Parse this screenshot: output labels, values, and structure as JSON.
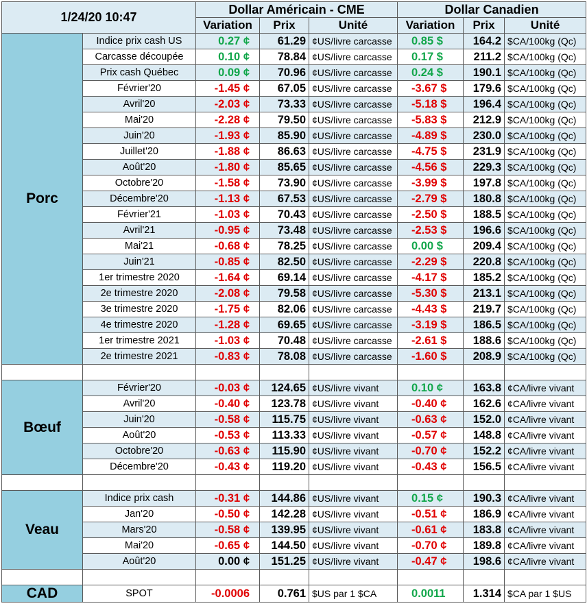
{
  "header": {
    "datetime": "1/24/20 10:47",
    "usd_group": "Dollar Américain - CME",
    "cad_group": "Dollar Canadien",
    "col_variation": "Variation",
    "col_prix": "Prix",
    "col_unite": "Unité"
  },
  "colors": {
    "negative": "#e00000",
    "positive": "#11a64a",
    "category_bg": "#95cfe0",
    "stripe_bg": "#dcebf3"
  },
  "sections": [
    {
      "name": "Porc",
      "rows": [
        {
          "label": "Indice prix cash US",
          "usd_var": "0.27 ¢",
          "usd_price": "61.29",
          "usd_unit": "¢US/livre carcasse",
          "cad_var": "0.85 $",
          "cad_price": "164.2",
          "cad_unit": "$CA/100kg (Qc)",
          "usd_sign": "pos",
          "cad_sign": "pos"
        },
        {
          "label": "Carcasse découpée",
          "usd_var": "0.10 ¢",
          "usd_price": "78.84",
          "usd_unit": "¢US/livre carcasse",
          "cad_var": "0.17 $",
          "cad_price": "211.2",
          "cad_unit": "$CA/100kg (Qc)",
          "usd_sign": "pos",
          "cad_sign": "pos"
        },
        {
          "label": "Prix cash Québec",
          "usd_var": "0.09 ¢",
          "usd_price": "70.96",
          "usd_unit": "¢US/livre carcasse",
          "cad_var": "0.24 $",
          "cad_price": "190.1",
          "cad_unit": "$CA/100kg (Qc)",
          "usd_sign": "pos",
          "cad_sign": "pos"
        },
        {
          "label": "Février'20",
          "usd_var": "-1.45 ¢",
          "usd_price": "67.05",
          "usd_unit": "¢US/livre carcasse",
          "cad_var": "-3.67 $",
          "cad_price": "179.6",
          "cad_unit": "$CA/100kg (Qc)",
          "usd_sign": "neg",
          "cad_sign": "neg"
        },
        {
          "label": "Avril'20",
          "usd_var": "-2.03 ¢",
          "usd_price": "73.33",
          "usd_unit": "¢US/livre carcasse",
          "cad_var": "-5.18 $",
          "cad_price": "196.4",
          "cad_unit": "$CA/100kg (Qc)",
          "usd_sign": "neg",
          "cad_sign": "neg"
        },
        {
          "label": "Mai'20",
          "usd_var": "-2.28 ¢",
          "usd_price": "79.50",
          "usd_unit": "¢US/livre carcasse",
          "cad_var": "-5.83 $",
          "cad_price": "212.9",
          "cad_unit": "$CA/100kg (Qc)",
          "usd_sign": "neg",
          "cad_sign": "neg"
        },
        {
          "label": "Juin'20",
          "usd_var": "-1.93 ¢",
          "usd_price": "85.90",
          "usd_unit": "¢US/livre carcasse",
          "cad_var": "-4.89 $",
          "cad_price": "230.0",
          "cad_unit": "$CA/100kg (Qc)",
          "usd_sign": "neg",
          "cad_sign": "neg"
        },
        {
          "label": "Juillet'20",
          "usd_var": "-1.88 ¢",
          "usd_price": "86.63",
          "usd_unit": "¢US/livre carcasse",
          "cad_var": "-4.75 $",
          "cad_price": "231.9",
          "cad_unit": "$CA/100kg (Qc)",
          "usd_sign": "neg",
          "cad_sign": "neg"
        },
        {
          "label": "Août'20",
          "usd_var": "-1.80 ¢",
          "usd_price": "85.65",
          "usd_unit": "¢US/livre carcasse",
          "cad_var": "-4.56 $",
          "cad_price": "229.3",
          "cad_unit": "$CA/100kg (Qc)",
          "usd_sign": "neg",
          "cad_sign": "neg"
        },
        {
          "label": "Octobre'20",
          "usd_var": "-1.58 ¢",
          "usd_price": "73.90",
          "usd_unit": "¢US/livre carcasse",
          "cad_var": "-3.99 $",
          "cad_price": "197.8",
          "cad_unit": "$CA/100kg (Qc)",
          "usd_sign": "neg",
          "cad_sign": "neg"
        },
        {
          "label": "Décembre'20",
          "usd_var": "-1.13 ¢",
          "usd_price": "67.53",
          "usd_unit": "¢US/livre carcasse",
          "cad_var": "-2.79 $",
          "cad_price": "180.8",
          "cad_unit": "$CA/100kg (Qc)",
          "usd_sign": "neg",
          "cad_sign": "neg"
        },
        {
          "label": "Février'21",
          "usd_var": "-1.03 ¢",
          "usd_price": "70.43",
          "usd_unit": "¢US/livre carcasse",
          "cad_var": "-2.50 $",
          "cad_price": "188.5",
          "cad_unit": "$CA/100kg (Qc)",
          "usd_sign": "neg",
          "cad_sign": "neg"
        },
        {
          "label": "Avril'21",
          "usd_var": "-0.95 ¢",
          "usd_price": "73.48",
          "usd_unit": "¢US/livre carcasse",
          "cad_var": "-2.53 $",
          "cad_price": "196.6",
          "cad_unit": "$CA/100kg (Qc)",
          "usd_sign": "neg",
          "cad_sign": "neg"
        },
        {
          "label": "Mai'21",
          "usd_var": "-0.68 ¢",
          "usd_price": "78.25",
          "usd_unit": "¢US/livre carcasse",
          "cad_var": "0.00 $",
          "cad_price": "209.4",
          "cad_unit": "$CA/100kg (Qc)",
          "usd_sign": "neg",
          "cad_sign": "pos"
        },
        {
          "label": "Juin'21",
          "usd_var": "-0.85 ¢",
          "usd_price": "82.50",
          "usd_unit": "¢US/livre carcasse",
          "cad_var": "-2.29 $",
          "cad_price": "220.8",
          "cad_unit": "$CA/100kg (Qc)",
          "usd_sign": "neg",
          "cad_sign": "neg"
        },
        {
          "label": "1er trimestre 2020",
          "usd_var": "-1.64 ¢",
          "usd_price": "69.14",
          "usd_unit": "¢US/livre carcasse",
          "cad_var": "-4.17 $",
          "cad_price": "185.2",
          "cad_unit": "$CA/100kg (Qc)",
          "usd_sign": "neg",
          "cad_sign": "neg"
        },
        {
          "label": "2e trimestre 2020",
          "usd_var": "-2.08 ¢",
          "usd_price": "79.58",
          "usd_unit": "¢US/livre carcasse",
          "cad_var": "-5.30 $",
          "cad_price": "213.1",
          "cad_unit": "$CA/100kg (Qc)",
          "usd_sign": "neg",
          "cad_sign": "neg"
        },
        {
          "label": "3e trimestre 2020",
          "usd_var": "-1.75 ¢",
          "usd_price": "82.06",
          "usd_unit": "¢US/livre carcasse",
          "cad_var": "-4.43 $",
          "cad_price": "219.7",
          "cad_unit": "$CA/100kg (Qc)",
          "usd_sign": "neg",
          "cad_sign": "neg"
        },
        {
          "label": "4e trimestre 2020",
          "usd_var": "-1.28 ¢",
          "usd_price": "69.65",
          "usd_unit": "¢US/livre carcasse",
          "cad_var": "-3.19 $",
          "cad_price": "186.5",
          "cad_unit": "$CA/100kg (Qc)",
          "usd_sign": "neg",
          "cad_sign": "neg"
        },
        {
          "label": "1er trimestre 2021",
          "usd_var": "-1.03 ¢",
          "usd_price": "70.48",
          "usd_unit": "¢US/livre carcasse",
          "cad_var": "-2.61 $",
          "cad_price": "188.6",
          "cad_unit": "$CA/100kg (Qc)",
          "usd_sign": "neg",
          "cad_sign": "neg"
        },
        {
          "label": "2e trimestre 2021",
          "usd_var": "-0.83 ¢",
          "usd_price": "78.08",
          "usd_unit": "¢US/livre carcasse",
          "cad_var": "-1.60 $",
          "cad_price": "208.9",
          "cad_unit": "$CA/100kg (Qc)",
          "usd_sign": "neg",
          "cad_sign": "neg"
        }
      ]
    },
    {
      "name": "Bœuf",
      "rows": [
        {
          "label": "Février'20",
          "usd_var": "-0.03 ¢",
          "usd_price": "124.65",
          "usd_unit": "¢US/livre vivant",
          "cad_var": "0.10 ¢",
          "cad_price": "163.8",
          "cad_unit": "¢CA/livre vivant",
          "usd_sign": "neg",
          "cad_sign": "pos"
        },
        {
          "label": "Avril'20",
          "usd_var": "-0.40 ¢",
          "usd_price": "123.78",
          "usd_unit": "¢US/livre vivant",
          "cad_var": "-0.40 ¢",
          "cad_price": "162.6",
          "cad_unit": "¢CA/livre vivant",
          "usd_sign": "neg",
          "cad_sign": "neg"
        },
        {
          "label": "Juin'20",
          "usd_var": "-0.58 ¢",
          "usd_price": "115.75",
          "usd_unit": "¢US/livre vivant",
          "cad_var": "-0.63 ¢",
          "cad_price": "152.0",
          "cad_unit": "¢CA/livre vivant",
          "usd_sign": "neg",
          "cad_sign": "neg"
        },
        {
          "label": "Août'20",
          "usd_var": "-0.53 ¢",
          "usd_price": "113.33",
          "usd_unit": "¢US/livre vivant",
          "cad_var": "-0.57 ¢",
          "cad_price": "148.8",
          "cad_unit": "¢CA/livre vivant",
          "usd_sign": "neg",
          "cad_sign": "neg"
        },
        {
          "label": "Octobre'20",
          "usd_var": "-0.63 ¢",
          "usd_price": "115.90",
          "usd_unit": "¢US/livre vivant",
          "cad_var": "-0.70 ¢",
          "cad_price": "152.2",
          "cad_unit": "¢CA/livre vivant",
          "usd_sign": "neg",
          "cad_sign": "neg"
        },
        {
          "label": "Décembre'20",
          "usd_var": "-0.43 ¢",
          "usd_price": "119.20",
          "usd_unit": "¢US/livre vivant",
          "cad_var": "-0.43 ¢",
          "cad_price": "156.5",
          "cad_unit": "¢CA/livre vivant",
          "usd_sign": "neg",
          "cad_sign": "neg"
        }
      ]
    },
    {
      "name": "Veau",
      "rows": [
        {
          "label": "Indice prix cash",
          "usd_var": "-0.31 ¢",
          "usd_price": "144.86",
          "usd_unit": "¢US/livre vivant",
          "cad_var": "0.15 ¢",
          "cad_price": "190.3",
          "cad_unit": "¢CA/livre vivant",
          "usd_sign": "neg",
          "cad_sign": "pos"
        },
        {
          "label": "Jan'20",
          "usd_var": "-0.50 ¢",
          "usd_price": "142.28",
          "usd_unit": "¢US/livre vivant",
          "cad_var": "-0.51 ¢",
          "cad_price": "186.9",
          "cad_unit": "¢CA/livre vivant",
          "usd_sign": "neg",
          "cad_sign": "neg"
        },
        {
          "label": "Mars'20",
          "usd_var": "-0.58 ¢",
          "usd_price": "139.95",
          "usd_unit": "¢US/livre vivant",
          "cad_var": "-0.61 ¢",
          "cad_price": "183.8",
          "cad_unit": "¢CA/livre vivant",
          "usd_sign": "neg",
          "cad_sign": "neg"
        },
        {
          "label": "Mai'20",
          "usd_var": "-0.65 ¢",
          "usd_price": "144.50",
          "usd_unit": "¢US/livre vivant",
          "cad_var": "-0.70 ¢",
          "cad_price": "189.8",
          "cad_unit": "¢CA/livre vivant",
          "usd_sign": "neg",
          "cad_sign": "neg"
        },
        {
          "label": "Août'20",
          "usd_var": "0.00 ¢",
          "usd_price": "151.25",
          "usd_unit": "¢US/livre vivant",
          "cad_var": "-0.47 ¢",
          "cad_price": "198.6",
          "cad_unit": "¢CA/livre vivant",
          "usd_sign": "zero",
          "cad_sign": "neg"
        }
      ]
    }
  ],
  "cad": {
    "name": "CAD",
    "label": "SPOT",
    "usd_var": "-0.0006",
    "usd_price": "0.761",
    "usd_unit": "$US par 1 $CA",
    "cad_var": "0.0011",
    "cad_price": "1.314",
    "cad_unit": "$CA par 1 $US",
    "usd_sign": "neg",
    "cad_sign": "pos"
  }
}
